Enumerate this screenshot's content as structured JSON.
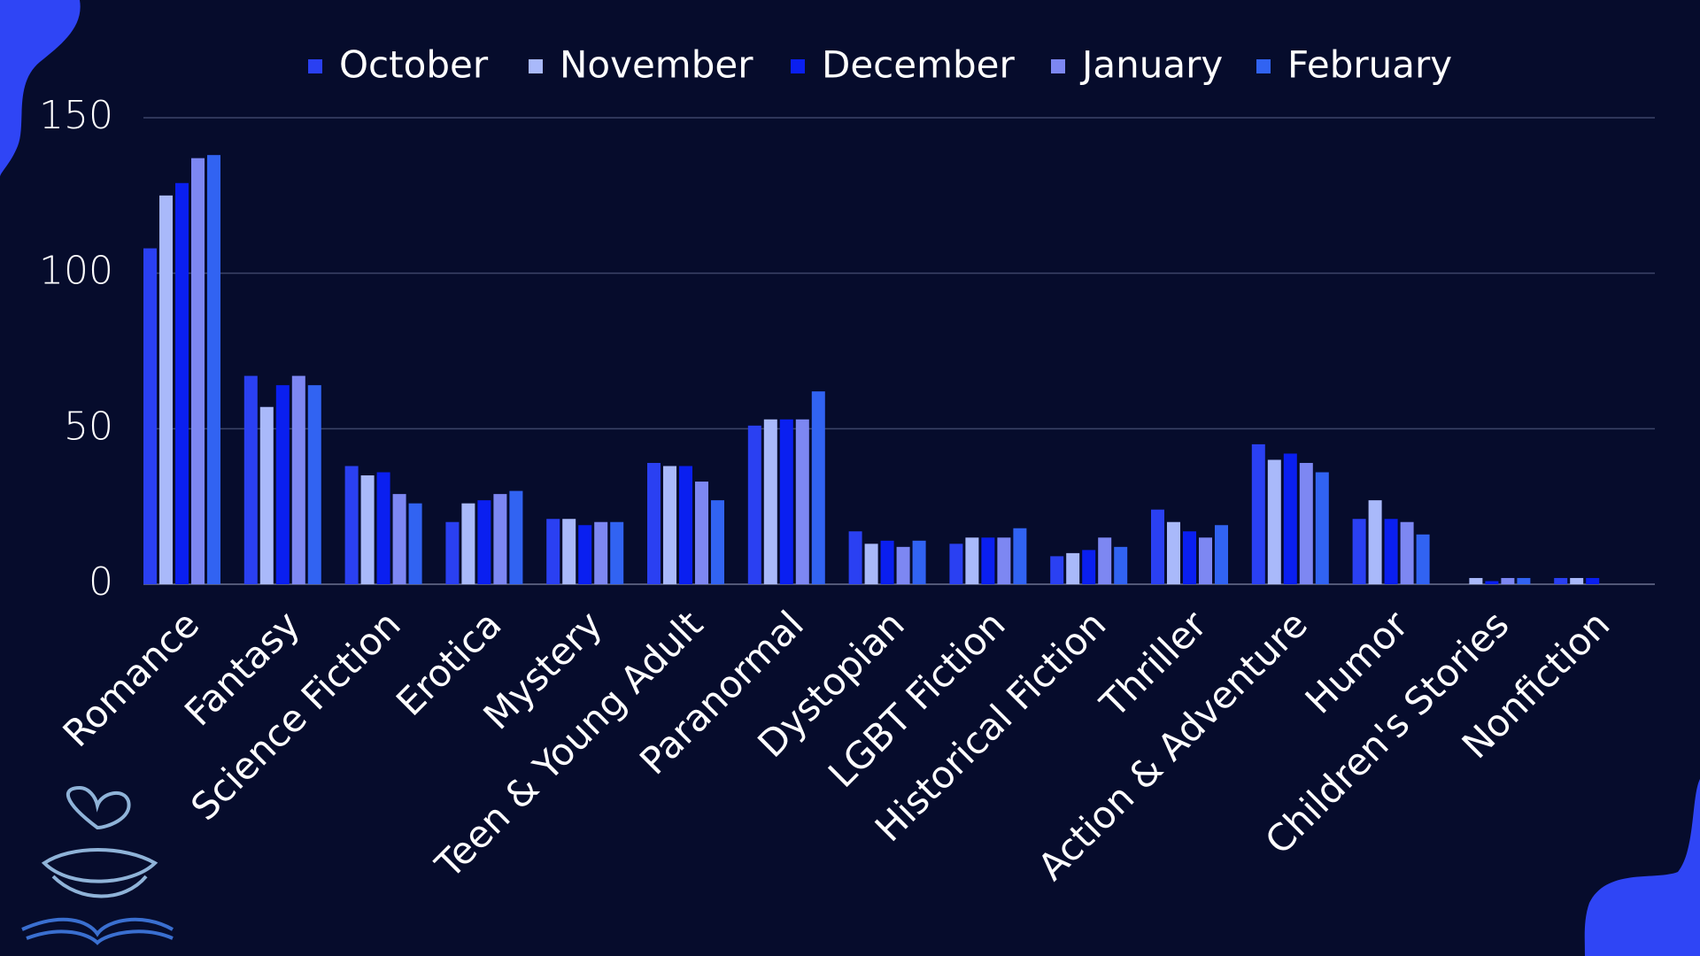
{
  "chart_data": {
    "type": "bar",
    "categories": [
      "Romance",
      "Fantasy",
      "Science Fiction",
      "Erotica",
      "Mystery",
      "Teen & Young Adult",
      "Paranormal",
      "Dystopian",
      "LGBT Fiction",
      "Historical Fiction",
      "Thriller",
      "Action & Adventure",
      "Humor",
      "Children's Stories",
      "Nonfiction"
    ],
    "series": [
      {
        "name": "October",
        "color": "#2a40f2",
        "values": [
          108,
          67,
          38,
          20,
          21,
          39,
          51,
          17,
          13,
          9,
          24,
          45,
          21,
          0,
          2
        ]
      },
      {
        "name": "November",
        "color": "#a9b9fa",
        "values": [
          125,
          57,
          35,
          26,
          21,
          38,
          53,
          13,
          15,
          10,
          20,
          40,
          27,
          2,
          2
        ]
      },
      {
        "name": "December",
        "color": "#0a1ff0",
        "values": [
          129,
          64,
          36,
          27,
          19,
          38,
          53,
          14,
          15,
          11,
          17,
          42,
          21,
          1,
          2
        ]
      },
      {
        "name": "January",
        "color": "#7d87f2",
        "values": [
          137,
          67,
          29,
          29,
          20,
          33,
          53,
          12,
          15,
          15,
          15,
          39,
          20,
          2,
          0
        ]
      },
      {
        "name": "February",
        "color": "#3163f2",
        "values": [
          138,
          64,
          26,
          30,
          20,
          27,
          62,
          14,
          18,
          12,
          19,
          36,
          16,
          2,
          0
        ]
      }
    ],
    "ylim": [
      0,
      150
    ],
    "yticks": [
      0,
      50,
      100,
      150
    ],
    "grid": true
  }
}
